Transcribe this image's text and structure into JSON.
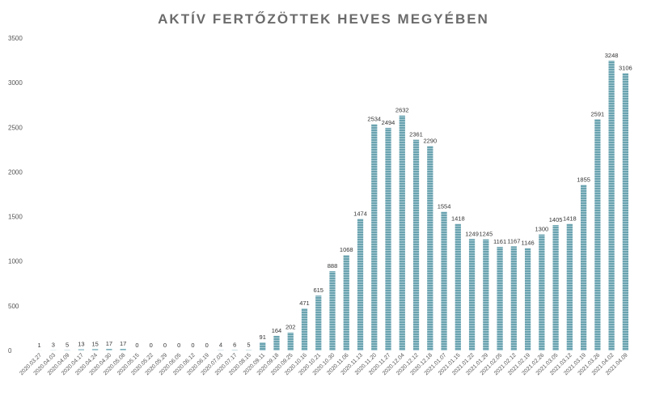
{
  "chart_data": {
    "type": "bar",
    "title": "AKTÍV FERTŐZÖTTEK HEVES MEGYÉBEN",
    "xlabel": "",
    "ylabel": "",
    "ylim": [
      0,
      3500
    ],
    "yticks": [
      0,
      500,
      1000,
      1500,
      2000,
      2500,
      3000,
      3500
    ],
    "grid": false,
    "bar_color": "#6aa3b0",
    "bar_stripe_color": "#a9cbd3",
    "categories": [
      "2020.03.27",
      "2020.04.03",
      "2020.04.09",
      "2020.04.17",
      "2020.04.24",
      "2020.04.30",
      "2020.05.08",
      "2020.05.15",
      "2020.05.22",
      "2020.05.29",
      "2020.06.05",
      "2020.06.12",
      "2020.06.19",
      "2020.07.03",
      "2020.07.17",
      "2020.08.15",
      "2020.09.11",
      "2020.09.18",
      "2020.09.25",
      "2020.10.16",
      "2020.10.21",
      "2020.10.30",
      "2020.11.06",
      "2020.11.13",
      "2020.11.20",
      "2020.11.27",
      "2020.12.04",
      "2020.12.12",
      "2020.12.18",
      "2021.01.07",
      "2021.01.15",
      "2021.01.22",
      "2021.01.29",
      "2021.02.05",
      "2021.02.12",
      "2021.02.19",
      "2021.02.26",
      "2021.03.05",
      "2021.03.12",
      "2021.03.19",
      "2021.03.26",
      "2021.04.02",
      "2021.04.09"
    ],
    "values": [
      1,
      3,
      5,
      13,
      15,
      17,
      17,
      0,
      0,
      0,
      0,
      0,
      0,
      4,
      6,
      5,
      91,
      164,
      202,
      471,
      615,
      888,
      1068,
      1474,
      2534,
      2494,
      2632,
      2361,
      2290,
      1554,
      1418,
      1249,
      1245,
      1161,
      1167,
      1146,
      1300,
      1405,
      1418,
      1855,
      2591,
      3248,
      3106
    ]
  }
}
